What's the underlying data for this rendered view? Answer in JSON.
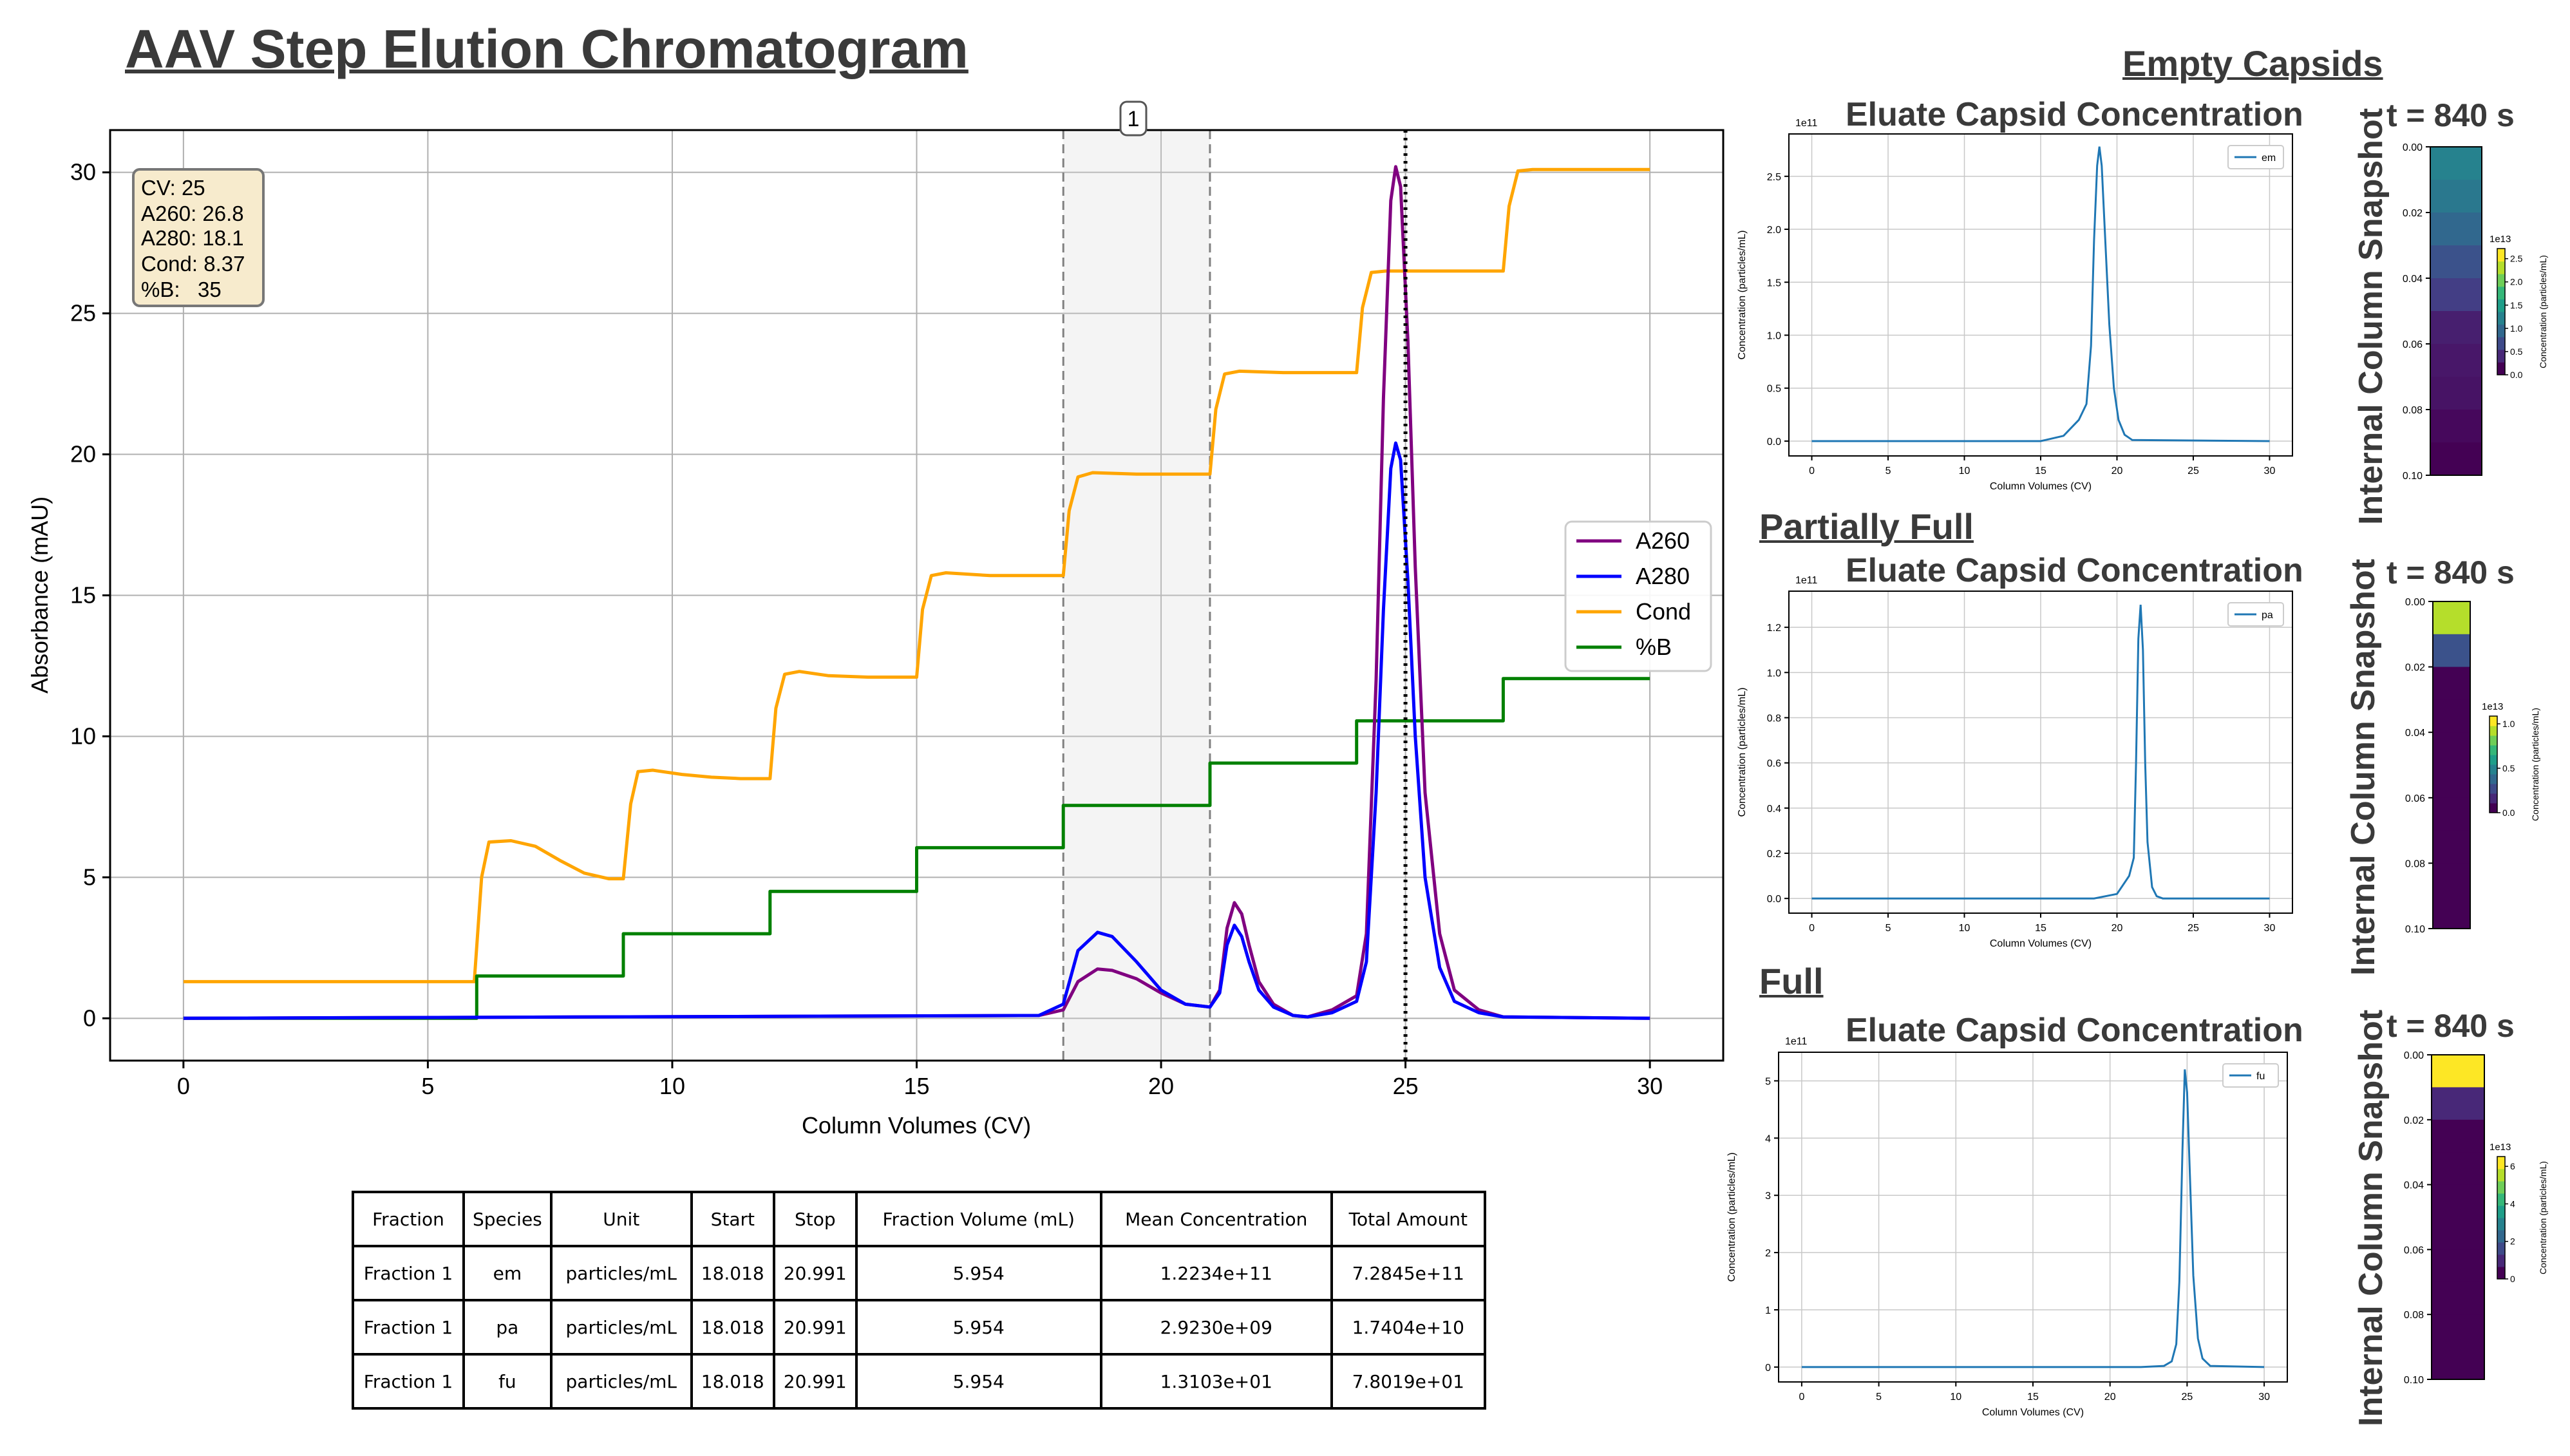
{
  "page": {
    "title": "AAV Step Elution Chromatogram",
    "section_empty": "Empty Capsids",
    "section_partial": "Partially Full",
    "section_full": "Full",
    "eluate_title": "Eluate Capsid Concentration",
    "snapshot_time": "t = 840 s",
    "snapshot_label": "Internal Column Snapshot"
  },
  "readout": {
    "cv": "CV: 25",
    "a260": "A260: 26.8",
    "a280": "A280: 18.1",
    "cond": "Cond: 8.37",
    "pb": "%B:   35"
  },
  "fraction_marker": "1",
  "table": {
    "headers": [
      "Fraction",
      "Species",
      "Unit",
      "Start",
      "Stop",
      "Fraction Volume (mL)",
      "Mean Concentration",
      "Total Amount"
    ],
    "rows": [
      [
        "Fraction 1",
        "em",
        "particles/mL",
        "18.018",
        "20.991",
        "5.954",
        "1.2234e+11",
        "7.2845e+11"
      ],
      [
        "Fraction 1",
        "pa",
        "particles/mL",
        "18.018",
        "20.991",
        "5.954",
        "2.9230e+09",
        "1.7404e+10"
      ],
      [
        "Fraction 1",
        "fu",
        "particles/mL",
        "18.018",
        "20.991",
        "5.954",
        "1.3103e+01",
        "7.8019e+01"
      ]
    ]
  },
  "chart_data": [
    {
      "type": "line",
      "title": "",
      "xlabel": "Column Volumes (CV)",
      "ylabel": "Absorbance (mAU)",
      "xlim": [
        -1.5,
        31.5
      ],
      "ylim": [
        -1.5,
        31.5
      ],
      "xticks": [
        0,
        5,
        10,
        15,
        20,
        25,
        30
      ],
      "yticks": [
        0,
        5,
        10,
        15,
        20,
        25,
        30
      ],
      "grid": true,
      "legend": "center-right",
      "fraction_window": [
        18.0,
        21.0
      ],
      "cursor_cv": 25,
      "series": [
        {
          "name": "A260",
          "color": "#800080",
          "x": [
            0,
            17.5,
            18.0,
            18.3,
            18.7,
            19.0,
            19.5,
            20.0,
            20.5,
            21.0,
            21.2,
            21.35,
            21.5,
            21.65,
            21.8,
            22.0,
            22.3,
            22.7,
            23.0,
            23.5,
            24.0,
            24.2,
            24.4,
            24.55,
            24.7,
            24.8,
            24.9,
            25.05,
            25.2,
            25.4,
            25.7,
            26.0,
            26.5,
            27.0,
            30.0
          ],
          "y": [
            0,
            0.1,
            0.3,
            1.3,
            1.75,
            1.7,
            1.4,
            0.9,
            0.5,
            0.4,
            1.0,
            3.2,
            4.1,
            3.7,
            2.6,
            1.3,
            0.5,
            0.1,
            0.05,
            0.3,
            0.8,
            3.0,
            12.0,
            22.0,
            29.0,
            30.2,
            29.5,
            24.0,
            16.0,
            8.0,
            3.0,
            1.0,
            0.3,
            0.05,
            0
          ]
        },
        {
          "name": "A280",
          "color": "#0000ff",
          "x": [
            0,
            17.5,
            18.0,
            18.3,
            18.7,
            19.0,
            19.5,
            20.0,
            20.5,
            21.0,
            21.2,
            21.35,
            21.5,
            21.65,
            21.8,
            22.0,
            22.3,
            22.7,
            23.0,
            23.5,
            24.0,
            24.2,
            24.4,
            24.55,
            24.7,
            24.8,
            24.9,
            25.05,
            25.2,
            25.4,
            25.7,
            26.0,
            26.5,
            27.0,
            30.0
          ],
          "y": [
            0,
            0.1,
            0.5,
            2.4,
            3.05,
            2.9,
            2.0,
            1.0,
            0.5,
            0.4,
            0.9,
            2.6,
            3.3,
            2.9,
            2.0,
            1.0,
            0.4,
            0.1,
            0.05,
            0.2,
            0.6,
            2.0,
            8.0,
            14.5,
            19.5,
            20.4,
            19.8,
            15.5,
            10.0,
            5.0,
            1.8,
            0.6,
            0.2,
            0.05,
            0
          ]
        },
        {
          "name": "Cond",
          "color": "#ffa500",
          "x": [
            0,
            5.95,
            6.1,
            6.25,
            6.7,
            7.2,
            7.7,
            8.2,
            8.7,
            9.0,
            9.15,
            9.3,
            9.6,
            10.2,
            10.8,
            11.4,
            12.0,
            12.12,
            12.3,
            12.6,
            13.2,
            14.0,
            15.0,
            15.12,
            15.3,
            15.6,
            16.5,
            18.0,
            18.12,
            18.3,
            18.6,
            19.5,
            21.0,
            21.12,
            21.3,
            21.6,
            22.5,
            24.0,
            24.12,
            24.3,
            24.6,
            25.5,
            27.0,
            27.12,
            27.3,
            27.6,
            28.5,
            30.0
          ],
          "y": [
            1.3,
            1.3,
            5.0,
            6.25,
            6.3,
            6.1,
            5.6,
            5.15,
            4.95,
            4.95,
            7.6,
            8.75,
            8.8,
            8.65,
            8.55,
            8.5,
            8.5,
            11.0,
            12.2,
            12.3,
            12.15,
            12.1,
            12.1,
            14.5,
            15.7,
            15.8,
            15.7,
            15.7,
            18.0,
            19.2,
            19.35,
            19.3,
            19.3,
            21.6,
            22.85,
            22.95,
            22.9,
            22.9,
            25.2,
            26.45,
            26.5,
            26.5,
            26.5,
            28.8,
            30.05,
            30.1,
            30.1,
            30.1
          ]
        },
        {
          "name": "%B",
          "color": "#008000",
          "x": [
            0,
            6.0,
            6.0,
            9.0,
            9.0,
            12.0,
            12.0,
            15.0,
            15.0,
            18.0,
            18.0,
            21.0,
            21.0,
            24.0,
            24.0,
            27.0,
            27.0,
            30.0
          ],
          "y": [
            0,
            0,
            1.5,
            1.5,
            3.0,
            3.0,
            4.5,
            4.5,
            6.05,
            6.05,
            7.55,
            7.55,
            9.05,
            9.05,
            10.55,
            10.55,
            12.05,
            12.05
          ]
        }
      ]
    },
    {
      "type": "line",
      "title": "Eluate Capsid Concentration",
      "xlabel": "Column Volumes (CV)",
      "ylabel": "Concentration (particles/mL)",
      "multiplier": "1e11",
      "xlim": [
        -1.5,
        31.5
      ],
      "ylim": [
        -0.14,
        2.9
      ],
      "xticks": [
        0,
        5,
        10,
        15,
        20,
        25,
        30
      ],
      "yticks": [
        0.0,
        0.5,
        1.0,
        1.5,
        2.0,
        2.5
      ],
      "grid": true,
      "legend": "top-right",
      "series": [
        {
          "name": "em",
          "color": "#1f77b4",
          "x": [
            0,
            15.0,
            16.5,
            17.5,
            18.0,
            18.3,
            18.5,
            18.7,
            18.85,
            19.0,
            19.2,
            19.5,
            19.8,
            20.1,
            20.5,
            21.0,
            30.0
          ],
          "y": [
            0,
            0,
            0.05,
            0.2,
            0.35,
            0.9,
            1.9,
            2.6,
            2.78,
            2.6,
            2.0,
            1.1,
            0.5,
            0.2,
            0.06,
            0.01,
            0
          ]
        }
      ]
    },
    {
      "type": "line",
      "title": "Eluate Capsid Concentration",
      "xlabel": "Column Volumes (CV)",
      "ylabel": "Concentration (particles/mL)",
      "multiplier": "1e11",
      "xlim": [
        -1.5,
        31.5
      ],
      "ylim": [
        -0.065,
        1.36
      ],
      "xticks": [
        0,
        5,
        10,
        15,
        20,
        25,
        30
      ],
      "yticks": [
        0.0,
        0.2,
        0.4,
        0.6,
        0.8,
        1.0,
        1.2
      ],
      "grid": true,
      "legend": "top-right",
      "series": [
        {
          "name": "pa",
          "color": "#1f77b4",
          "x": [
            0,
            18.5,
            20.0,
            20.8,
            21.1,
            21.25,
            21.4,
            21.55,
            21.7,
            21.85,
            22.0,
            22.3,
            22.6,
            23.0,
            30.0
          ],
          "y": [
            0,
            0,
            0.02,
            0.1,
            0.18,
            0.6,
            1.15,
            1.3,
            1.1,
            0.6,
            0.25,
            0.05,
            0.01,
            0,
            0
          ]
        }
      ]
    },
    {
      "type": "line",
      "title": "Eluate Capsid Concentration",
      "xlabel": "Column Volumes (CV)",
      "ylabel": "Concentration (particles/mL)",
      "multiplier": "1e11",
      "xlim": [
        -1.5,
        31.5
      ],
      "ylim": [
        -0.26,
        5.5
      ],
      "xticks": [
        0,
        5,
        10,
        15,
        20,
        25,
        30
      ],
      "yticks": [
        0,
        1,
        2,
        3,
        4,
        5
      ],
      "grid": true,
      "legend": "top-right",
      "series": [
        {
          "name": "fu",
          "color": "#1f77b4",
          "x": [
            0,
            22.0,
            23.5,
            24.0,
            24.3,
            24.5,
            24.7,
            24.85,
            25.0,
            25.2,
            25.4,
            25.7,
            26.0,
            26.5,
            30.0
          ],
          "y": [
            0,
            0,
            0.02,
            0.1,
            0.4,
            1.5,
            3.8,
            5.2,
            4.8,
            3.2,
            1.6,
            0.5,
            0.15,
            0.02,
            0
          ]
        }
      ]
    },
    {
      "type": "heatmap",
      "title": "t = 840 s",
      "ylim": [
        0.0,
        0.1
      ],
      "yticks": [
        "0.00",
        "0.02",
        "0.04",
        "0.06",
        "0.08",
        "0.10"
      ],
      "colorbar": {
        "multiplier": "1e13",
        "ticks": [
          "0.0",
          "0.5",
          "1.0",
          "1.5",
          "2.0",
          "2.5"
        ],
        "label": "Concentration (particles/mL)"
      },
      "cells": [
        "#26828e",
        "#2a788e",
        "#31688e",
        "#3b528b",
        "#433e85",
        "#471f6f",
        "#481769",
        "#471365",
        "#46085c",
        "#440154"
      ]
    },
    {
      "type": "heatmap",
      "title": "t = 840 s",
      "ylim": [
        0.0,
        0.1
      ],
      "yticks": [
        "0.00",
        "0.02",
        "0.04",
        "0.06",
        "0.08",
        "0.10"
      ],
      "colorbar": {
        "multiplier": "1e13",
        "ticks": [
          "0.0",
          "0.5",
          "1.0"
        ],
        "label": "Concentration (particles/mL)"
      },
      "cells": [
        "#b5de2b",
        "#3b528b",
        "#440154",
        "#440154",
        "#440154",
        "#440154",
        "#440154",
        "#440154",
        "#440154",
        "#440154"
      ]
    },
    {
      "type": "heatmap",
      "title": "t = 840 s",
      "ylim": [
        0.0,
        0.1
      ],
      "yticks": [
        "0.00",
        "0.02",
        "0.04",
        "0.06",
        "0.08",
        "0.10"
      ],
      "colorbar": {
        "multiplier": "1e13",
        "ticks": [
          "0",
          "2",
          "4",
          "6"
        ],
        "label": "Concentration (particles/mL)"
      },
      "cells": [
        "#fde725",
        "#482878",
        "#440154",
        "#440154",
        "#440154",
        "#440154",
        "#440154",
        "#440154",
        "#440154",
        "#440154"
      ]
    }
  ]
}
